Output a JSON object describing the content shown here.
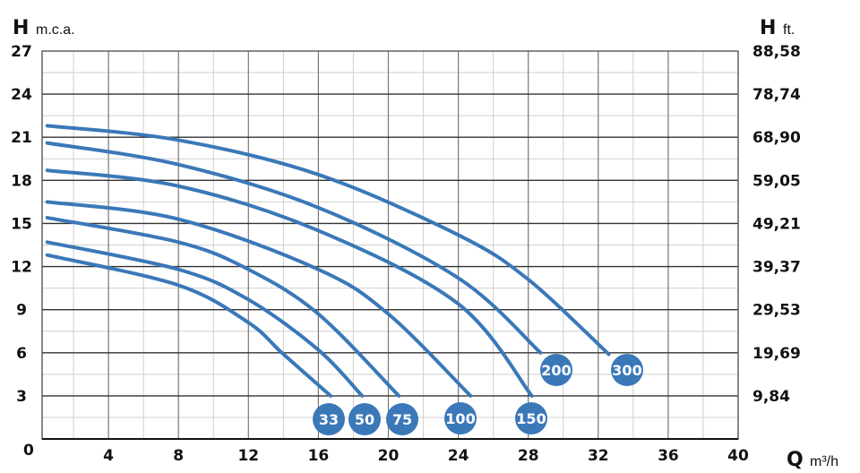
{
  "chart_data": {
    "type": "line",
    "left_axis": {
      "symbol": "H",
      "unit": "m.c.a.",
      "ticks": [
        "0",
        "3",
        "6",
        "9",
        "12",
        "15",
        "18",
        "21",
        "24",
        "27"
      ],
      "ylim": [
        0,
        27
      ]
    },
    "right_axis": {
      "symbol": "H",
      "unit": "ft.",
      "ticks": [
        "9,84",
        "19,69",
        "29,53",
        "39,37",
        "49,21",
        "59,05",
        "68,90",
        "78,74",
        "88,58"
      ]
    },
    "x_axis": {
      "symbol": "Q",
      "unit": "m³/h",
      "ticks": [
        "4",
        "8",
        "12",
        "16",
        "20",
        "24",
        "28",
        "32",
        "36",
        "40"
      ],
      "xlim": [
        0,
        40
      ]
    },
    "grid": true,
    "color": "#3a78b8",
    "series": [
      {
        "name": "300",
        "points": [
          [
            0.5,
            21.8
          ],
          [
            8,
            20.8
          ],
          [
            16,
            18.4
          ],
          [
            24,
            14.2
          ],
          [
            28,
            11.1
          ],
          [
            32.6,
            5.9
          ]
        ]
      },
      {
        "name": "200",
        "points": [
          [
            0.5,
            20.6
          ],
          [
            8,
            19.1
          ],
          [
            16,
            16.1
          ],
          [
            24,
            11.2
          ],
          [
            28.7,
            6.0
          ]
        ]
      },
      {
        "name": "150",
        "points": [
          [
            0.5,
            18.7
          ],
          [
            8,
            17.6
          ],
          [
            16,
            14.5
          ],
          [
            24,
            9.4
          ],
          [
            28.2,
            3.0
          ]
        ]
      },
      {
        "name": "100",
        "points": [
          [
            0.5,
            16.5
          ],
          [
            8,
            15.3
          ],
          [
            16,
            11.8
          ],
          [
            20,
            8.7
          ],
          [
            24.7,
            3.0
          ]
        ]
      },
      {
        "name": "75",
        "points": [
          [
            0.5,
            15.4
          ],
          [
            8,
            13.7
          ],
          [
            12,
            11.8
          ],
          [
            16,
            8.7
          ],
          [
            20.6,
            3.0
          ]
        ]
      },
      {
        "name": "50",
        "points": [
          [
            0.5,
            13.7
          ],
          [
            8,
            11.8
          ],
          [
            12,
            9.7
          ],
          [
            16,
            6.2
          ],
          [
            18.5,
            3.0
          ]
        ]
      },
      {
        "name": "33",
        "points": [
          [
            0.5,
            12.8
          ],
          [
            8,
            10.7
          ],
          [
            12,
            8.1
          ],
          [
            14,
            5.9
          ],
          [
            16.7,
            3.0
          ]
        ]
      }
    ]
  }
}
